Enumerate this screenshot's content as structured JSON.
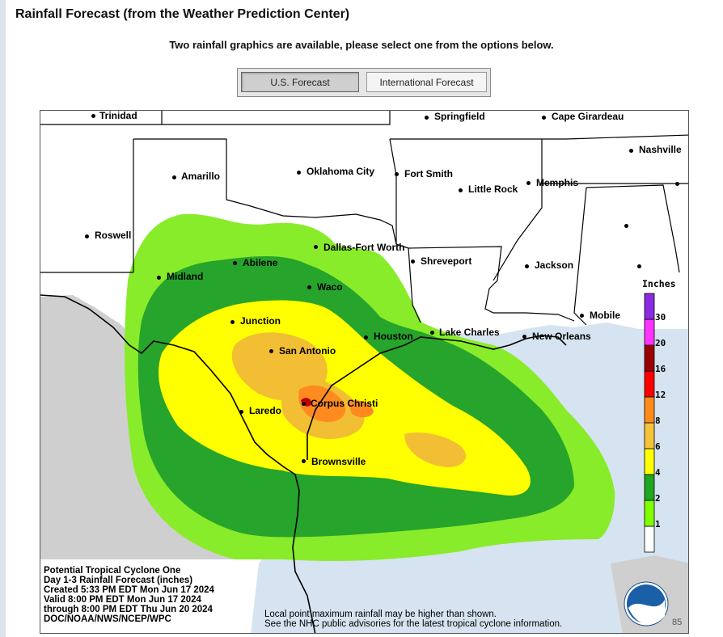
{
  "page": {
    "title": "Rainfall Forecast (from the Weather Prediction Center)",
    "subtitle": "Two rainfall graphics are available, please select one from the options below."
  },
  "buttons": {
    "us_forecast": "U.S. Forecast",
    "international_forecast": "International Forecast",
    "selected": "U.S. Forecast"
  },
  "map": {
    "info_lines": [
      "Potential Tropical Cyclone One",
      "Day 1-3 Rainfall Forecast (inches)",
      "Created 5:33 PM EDT Mon Jun 17 2024",
      "Valid 8:00 PM EDT Mon Jun 17 2024",
      "through 8:00 PM EDT Thu Jun 20 2024",
      "DOC/NOAA/NWS/NCEP/WPC"
    ],
    "disclaimer_lines": [
      "Local point maximum rainfall may be higher than shown.",
      "See the NHC public advisories for the latest tropical cyclone information."
    ],
    "legend": {
      "title": "Inches",
      "labels": [
        "30",
        "20",
        "16",
        "12",
        "8",
        "6",
        "4",
        "2",
        "1"
      ],
      "colors": [
        "#ffffff",
        "#7fff00",
        "#1fa71f",
        "#ffff00",
        "#f5c33a",
        "#ff8c1a",
        "#ff0000",
        "#9b0000",
        "#ff33ff",
        "#8a2be2"
      ]
    },
    "logo_text": "NOAA",
    "corner_number": "85",
    "cities": [
      {
        "name": "Trinidad"
      },
      {
        "name": "Springfield"
      },
      {
        "name": "Cape Girardeau"
      },
      {
        "name": "Nashville"
      },
      {
        "name": "Amarillo"
      },
      {
        "name": "Oklahoma City"
      },
      {
        "name": "Fort Smith"
      },
      {
        "name": "Little Rock"
      },
      {
        "name": "Memphis"
      },
      {
        "name": "Roswell"
      },
      {
        "name": "Dallas-Fort Worth"
      },
      {
        "name": "Abilene"
      },
      {
        "name": "Shreveport"
      },
      {
        "name": "Jackson"
      },
      {
        "name": "Midland"
      },
      {
        "name": "Waco"
      },
      {
        "name": "Junction"
      },
      {
        "name": "Houston"
      },
      {
        "name": "Lake Charles"
      },
      {
        "name": "Mobile"
      },
      {
        "name": "New Orleans"
      },
      {
        "name": "San Antonio"
      },
      {
        "name": "Corpus Christi"
      },
      {
        "name": "Laredo"
      },
      {
        "name": "Brownsville"
      }
    ]
  }
}
